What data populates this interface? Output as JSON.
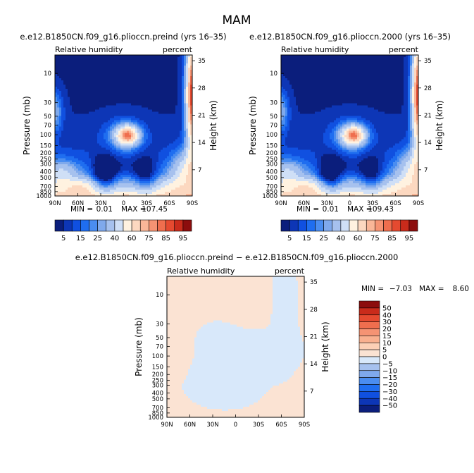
{
  "figure": {
    "title": "MAM"
  },
  "colors": {
    "seq": [
      "#0b1e7c",
      "#0d36b6",
      "#1050e0",
      "#1f6ef0",
      "#4a8df0",
      "#7fa9ec",
      "#a6c1ee",
      "#cfdff6",
      "#fff2e0",
      "#fcd8c0",
      "#f9b698",
      "#f59373",
      "#ef6e4e",
      "#e54a30",
      "#c92b1b",
      "#8c0d0d"
    ],
    "diff": [
      "#0b1e7c",
      "#0d36b6",
      "#1050e0",
      "#1f6ef0",
      "#4a8df0",
      "#7fa9ec",
      "#a6c1ee",
      "#d8e8fa",
      "#fbe3d3",
      "#fcd0b6",
      "#f9b08f",
      "#f59373",
      "#ef6e4e",
      "#e54a30",
      "#c92b1b",
      "#8c0d0d"
    ]
  },
  "chart_data": [
    {
      "type": "heatmap",
      "title": "e.e12.B1850CN.f09_g16.plioccn.preind (yrs 16–35)",
      "left_label": "Relative humidity",
      "right_label": "percent",
      "xlabel": "",
      "ylabel": "Pressure (mb)",
      "y2label": "Height (km)",
      "x_ticks": [
        "90N",
        "60N",
        "30N",
        "0",
        "30S",
        "60S",
        "90S"
      ],
      "y_ticks": [
        "10",
        "30",
        "50",
        "70",
        "100",
        "150",
        "200",
        "250",
        "300",
        "400",
        "500",
        "700",
        "850",
        "1000"
      ],
      "y2_ticks": [
        "35",
        "28",
        "21",
        "14",
        "7"
      ],
      "stats": {
        "min_label": "MIN =",
        "min": "0.01",
        "max_label": "MAX =",
        "max": "107.45"
      },
      "colorbar": {
        "orientation": "horizontal",
        "labels": [
          "5",
          "15",
          "25",
          "40",
          "60",
          "75",
          "85",
          "95"
        ]
      },
      "field_variant": "preind"
    },
    {
      "type": "heatmap",
      "title": "e.e12.B1850CN.f09_g16.plioccn.2000 (yrs 16–35)",
      "left_label": "Relative humidity",
      "right_label": "percent",
      "xlabel": "",
      "ylabel": "Pressure (mb)",
      "y2label": "Height (km)",
      "x_ticks": [
        "90N",
        "60N",
        "30N",
        "0",
        "30S",
        "60S",
        "90S"
      ],
      "y_ticks": [
        "10",
        "30",
        "50",
        "70",
        "100",
        "150",
        "200",
        "250",
        "300",
        "400",
        "500",
        "700",
        "850",
        "1000"
      ],
      "y2_ticks": [
        "35",
        "28",
        "21",
        "14",
        "7"
      ],
      "stats": {
        "min_label": "MIN =",
        "min": "0.01",
        "max_label": "MAX =",
        "max": "109.43"
      },
      "colorbar": {
        "orientation": "horizontal",
        "labels": [
          "5",
          "15",
          "25",
          "40",
          "60",
          "75",
          "85",
          "95"
        ]
      },
      "field_variant": "y2000"
    },
    {
      "type": "heatmap",
      "title": "e.e12.B1850CN.f09_g16.plioccn.preind − e.e12.B1850CN.f09_g16.plioccn.2000",
      "left_label": "Relative humidity",
      "right_label": "percent",
      "xlabel": "",
      "ylabel": "Pressure (mb)",
      "y2label": "Height (km)",
      "x_ticks": [
        "90N",
        "60N",
        "30N",
        "0",
        "30S",
        "60S",
        "90S"
      ],
      "y_ticks": [
        "10",
        "30",
        "50",
        "70",
        "100",
        "150",
        "200",
        "250",
        "300",
        "400",
        "500",
        "700",
        "850",
        "1000"
      ],
      "y2_ticks": [
        "35",
        "28",
        "21",
        "14",
        "7"
      ],
      "stats": {
        "min_label": "MIN =",
        "min": "−7.03",
        "max_label": "MAX =",
        "max": "8.60"
      },
      "colorbar": {
        "orientation": "vertical",
        "labels": [
          "50",
          "40",
          "30",
          "20",
          "15",
          "10",
          "5",
          "0",
          "−5",
          "−10",
          "−15",
          "−20",
          "−30",
          "−40",
          "−50"
        ]
      },
      "field_variant": "diff"
    }
  ]
}
